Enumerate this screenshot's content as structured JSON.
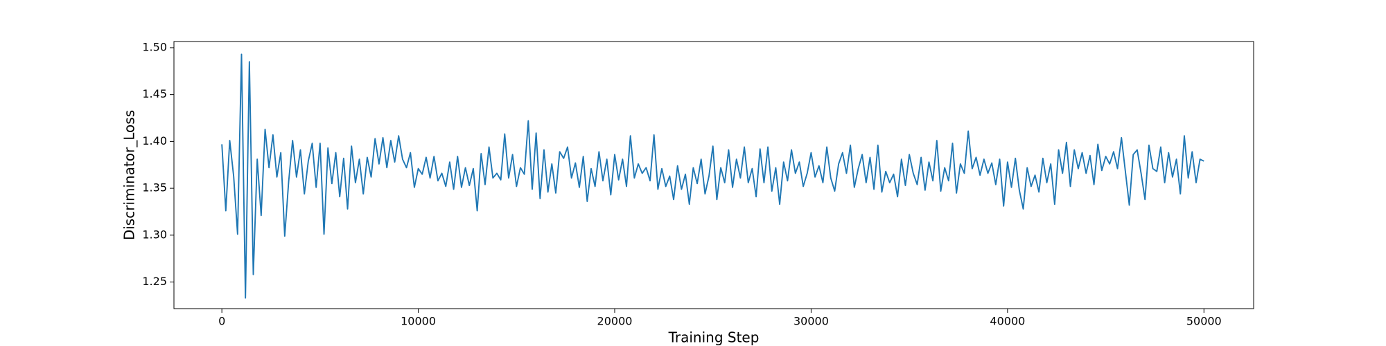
{
  "chart_data": {
    "type": "line",
    "xlabel": "Training Step",
    "ylabel": "Discriminator_Loss",
    "color": "#1f77b4",
    "grid": false,
    "xlim": [
      -2440,
      52530
    ],
    "ylim": [
      1.2216,
      1.5066
    ],
    "xticks": [
      0,
      10000,
      20000,
      30000,
      40000,
      50000
    ],
    "yticks": [
      1.25,
      {
        "value": 1.3,
        "label": "1.30"
      },
      1.35,
      {
        "value": 1.4,
        "label": "1.40"
      },
      1.45,
      {
        "value": 1.5,
        "label": "1.50"
      }
    ],
    "x": [
      0,
      200,
      400,
      600,
      800,
      1000,
      1200,
      1400,
      1600,
      1800,
      2000,
      2200,
      2400,
      2600,
      2800,
      3000,
      3200,
      3400,
      3600,
      3800,
      4000,
      4200,
      4400,
      4600,
      4800,
      5000,
      5200,
      5400,
      5600,
      5800,
      6000,
      6200,
      6400,
      6600,
      6800,
      7000,
      7200,
      7400,
      7600,
      7800,
      8000,
      8200,
      8400,
      8600,
      8800,
      9000,
      9200,
      9400,
      9600,
      9800,
      10000,
      10200,
      10400,
      10600,
      10800,
      11000,
      11200,
      11400,
      11600,
      11800,
      12000,
      12200,
      12400,
      12600,
      12800,
      13000,
      13200,
      13400,
      13600,
      13800,
      14000,
      14200,
      14400,
      14600,
      14800,
      15000,
      15200,
      15400,
      15600,
      15800,
      16000,
      16200,
      16400,
      16600,
      16800,
      17000,
      17200,
      17400,
      17600,
      17800,
      18000,
      18200,
      18400,
      18600,
      18800,
      19000,
      19200,
      19400,
      19600,
      19800,
      20000,
      20200,
      20400,
      20600,
      20800,
      21000,
      21200,
      21400,
      21600,
      21800,
      22000,
      22200,
      22400,
      22600,
      22800,
      23000,
      23200,
      23400,
      23600,
      23800,
      24000,
      24200,
      24400,
      24600,
      24800,
      25000,
      25200,
      25400,
      25600,
      25800,
      26000,
      26200,
      26400,
      26600,
      26800,
      27000,
      27200,
      27400,
      27600,
      27800,
      28000,
      28200,
      28400,
      28600,
      28800,
      29000,
      29200,
      29400,
      29600,
      29800,
      30000,
      30200,
      30400,
      30600,
      30800,
      31000,
      31200,
      31400,
      31600,
      31800,
      32000,
      32200,
      32400,
      32600,
      32800,
      33000,
      33200,
      33400,
      33600,
      33800,
      34000,
      34200,
      34400,
      34600,
      34800,
      35000,
      35200,
      35400,
      35600,
      35800,
      36000,
      36200,
      36400,
      36600,
      36800,
      37000,
      37200,
      37400,
      37600,
      37800,
      38000,
      38200,
      38400,
      38600,
      38800,
      39000,
      39200,
      39400,
      39600,
      39800,
      40000,
      40200,
      40400,
      40600,
      40800,
      41000,
      41200,
      41400,
      41600,
      41800,
      42000,
      42200,
      42400,
      42600,
      42800,
      43000,
      43200,
      43400,
      43600,
      43800,
      44000,
      44200,
      44400,
      44600,
      44800,
      45000,
      45200,
      45400,
      45600,
      45800,
      46000,
      46200,
      46400,
      46600,
      46800,
      47000,
      47200,
      47400,
      47600,
      47800,
      48000,
      48200,
      48400,
      48600,
      48800,
      49000,
      49200,
      49400,
      49600,
      49800,
      50000
    ],
    "values": [
      1.397,
      1.326,
      1.401,
      1.363,
      1.301,
      1.493,
      1.233,
      1.485,
      1.258,
      1.381,
      1.321,
      1.413,
      1.372,
      1.407,
      1.362,
      1.388,
      1.299,
      1.357,
      1.401,
      1.362,
      1.391,
      1.344,
      1.379,
      1.398,
      1.351,
      1.398,
      1.301,
      1.393,
      1.355,
      1.388,
      1.341,
      1.382,
      1.328,
      1.395,
      1.356,
      1.381,
      1.344,
      1.383,
      1.362,
      1.403,
      1.376,
      1.404,
      1.372,
      1.401,
      1.378,
      1.406,
      1.381,
      1.372,
      1.388,
      1.351,
      1.371,
      1.365,
      1.383,
      1.361,
      1.384,
      1.358,
      1.366,
      1.352,
      1.378,
      1.349,
      1.384,
      1.351,
      1.372,
      1.353,
      1.371,
      1.326,
      1.387,
      1.354,
      1.394,
      1.361,
      1.366,
      1.359,
      1.408,
      1.361,
      1.386,
      1.352,
      1.372,
      1.365,
      1.422,
      1.349,
      1.409,
      1.339,
      1.391,
      1.346,
      1.376,
      1.345,
      1.389,
      1.382,
      1.394,
      1.361,
      1.377,
      1.351,
      1.384,
      1.336,
      1.371,
      1.352,
      1.389,
      1.358,
      1.381,
      1.343,
      1.386,
      1.359,
      1.381,
      1.352,
      1.406,
      1.361,
      1.376,
      1.366,
      1.372,
      1.358,
      1.407,
      1.349,
      1.371,
      1.352,
      1.363,
      1.338,
      1.374,
      1.349,
      1.365,
      1.333,
      1.372,
      1.355,
      1.381,
      1.344,
      1.363,
      1.395,
      1.338,
      1.372,
      1.356,
      1.391,
      1.351,
      1.381,
      1.361,
      1.394,
      1.356,
      1.371,
      1.341,
      1.392,
      1.356,
      1.394,
      1.347,
      1.372,
      1.333,
      1.378,
      1.358,
      1.391,
      1.366,
      1.378,
      1.352,
      1.366,
      1.388,
      1.362,
      1.374,
      1.356,
      1.394,
      1.361,
      1.347,
      1.376,
      1.388,
      1.366,
      1.396,
      1.351,
      1.371,
      1.386,
      1.356,
      1.383,
      1.349,
      1.396,
      1.346,
      1.368,
      1.356,
      1.365,
      1.341,
      1.381,
      1.353,
      1.386,
      1.366,
      1.354,
      1.383,
      1.348,
      1.378,
      1.358,
      1.401,
      1.347,
      1.372,
      1.358,
      1.398,
      1.345,
      1.376,
      1.366,
      1.411,
      1.371,
      1.383,
      1.364,
      1.381,
      1.366,
      1.377,
      1.354,
      1.381,
      1.331,
      1.378,
      1.351,
      1.382,
      1.348,
      1.328,
      1.372,
      1.352,
      1.364,
      1.346,
      1.382,
      1.356,
      1.376,
      1.333,
      1.391,
      1.366,
      1.399,
      1.352,
      1.391,
      1.371,
      1.388,
      1.366,
      1.385,
      1.354,
      1.397,
      1.369,
      1.384,
      1.376,
      1.389,
      1.371,
      1.404,
      1.368,
      1.332,
      1.386,
      1.391,
      1.366,
      1.338,
      1.396,
      1.371,
      1.368,
      1.394,
      1.356,
      1.388,
      1.362,
      1.381,
      1.344,
      1.406,
      1.361,
      1.389,
      1.356,
      1.381,
      1.379
    ]
  }
}
